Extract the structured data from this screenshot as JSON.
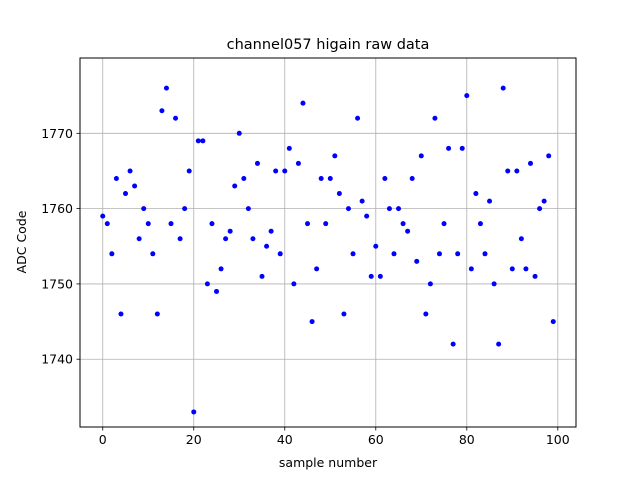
{
  "chart_data": {
    "type": "scatter",
    "title": "channel057 higain raw data",
    "xlabel": "sample number",
    "ylabel": "ADC Code",
    "xlim": [
      -5,
      104
    ],
    "ylim": [
      1731,
      1780
    ],
    "grid": true,
    "marker_color": "#0000ff",
    "x_ticks": [
      0,
      20,
      40,
      60,
      80,
      100
    ],
    "x_tick_labels": [
      "0",
      "20",
      "40",
      "60",
      "80",
      "100"
    ],
    "y_ticks": [
      1740,
      1750,
      1760,
      1770
    ],
    "y_tick_labels": [
      "1740",
      "1750",
      "1760",
      "1770"
    ],
    "x": [
      0,
      1,
      2,
      3,
      4,
      5,
      6,
      7,
      8,
      9,
      10,
      11,
      12,
      13,
      14,
      15,
      16,
      17,
      18,
      19,
      20,
      21,
      22,
      23,
      24,
      25,
      26,
      27,
      28,
      29,
      30,
      31,
      32,
      33,
      34,
      35,
      36,
      37,
      38,
      39,
      40,
      41,
      42,
      43,
      44,
      45,
      46,
      47,
      48,
      49,
      50,
      51,
      52,
      53,
      54,
      55,
      56,
      57,
      58,
      59,
      60,
      61,
      62,
      63,
      64,
      65,
      66,
      67,
      68,
      69,
      70,
      71,
      72,
      73,
      74,
      75,
      76,
      77,
      78,
      79,
      80,
      81,
      82,
      83,
      84,
      85,
      86,
      87,
      88,
      89,
      90,
      91,
      92,
      93,
      94,
      95,
      96,
      97,
      98,
      99
    ],
    "y": [
      1759,
      1758,
      1754,
      1764,
      1746,
      1762,
      1765,
      1763,
      1756,
      1760,
      1758,
      1754,
      1746,
      1773,
      1776,
      1758,
      1772,
      1756,
      1760,
      1765,
      1733,
      1769,
      1769,
      1750,
      1758,
      1749,
      1752,
      1756,
      1757,
      1763,
      1770,
      1764,
      1760,
      1756,
      1766,
      1751,
      1755,
      1757,
      1765,
      1754,
      1765,
      1768,
      1750,
      1766,
      1774,
      1758,
      1745,
      1752,
      1764,
      1758,
      1764,
      1767,
      1762,
      1746,
      1760,
      1754,
      1772,
      1761,
      1759,
      1751,
      1755,
      1751,
      1764,
      1760,
      1754,
      1760,
      1758,
      1757,
      1764,
      1753,
      1767,
      1746,
      1750,
      1772,
      1754,
      1758,
      1768,
      1742,
      1754,
      1768,
      1775,
      1752,
      1762,
      1758,
      1754,
      1761,
      1750,
      1742,
      1776,
      1765,
      1752,
      1765,
      1756,
      1752,
      1766,
      1751,
      1760,
      1761,
      1767,
      1745
    ]
  }
}
